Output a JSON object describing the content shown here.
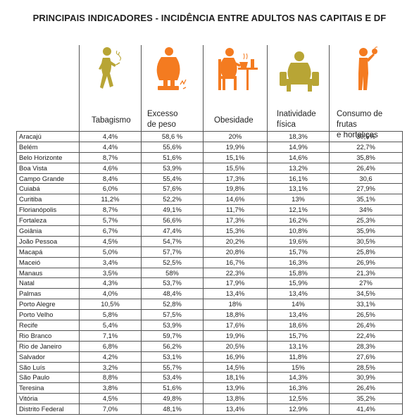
{
  "title": "PRINCIPAIS INDICADORES - INCIDÊNCIA ENTRE ADULTOS NAS CAPITAIS E DF",
  "colors": {
    "orange": "#f47b20",
    "olive": "#b8a535",
    "border": "#555555"
  },
  "headers": [
    {
      "lines": [
        "Tabagismo"
      ],
      "icon": "smoking-person-icon"
    },
    {
      "lines": [
        "Excesso",
        "de peso"
      ],
      "icon": "overweight-on-scale-icon"
    },
    {
      "lines": [
        "Obesidade"
      ],
      "icon": "obese-person-eating-icon"
    },
    {
      "lines": [
        "Inatividade",
        "física"
      ],
      "icon": "sitting-inactive-person-icon"
    },
    {
      "lines": [
        "Consumo de frutas",
        "e hortaliças"
      ],
      "icon": "person-eating-fruit-icon"
    }
  ],
  "chart_data": {
    "type": "table",
    "title": "PRINCIPAIS INDICADORES - INCIDÊNCIA ENTRE ADULTOS NAS CAPITAIS E DF",
    "columns": [
      "Tabagismo",
      "Excesso de peso",
      "Obesidade",
      "Inatividade física",
      "Consumo de frutas e hortaliças"
    ],
    "rows": [
      {
        "city": "Aracajú",
        "values": [
          "4,4%",
          "58,6 %",
          "20%",
          "18,3%",
          "30,6%"
        ]
      },
      {
        "city": "Belém",
        "values": [
          "4,4%",
          "55,6%",
          "19,9%",
          "14,9%",
          "22,7%"
        ]
      },
      {
        "city": "Belo Horizonte",
        "values": [
          "8,7%",
          "51,6%",
          "15,1%",
          "14,6%",
          "35,8%"
        ]
      },
      {
        "city": "Boa Vista",
        "values": [
          "4,6%",
          "53,9%",
          "15,5%",
          "13,2%",
          "26,4%"
        ]
      },
      {
        "city": "Campo Grande",
        "values": [
          "8,4%",
          "55,4%",
          "17,3%",
          "16,1%",
          "30,6"
        ]
      },
      {
        "city": "Cuiabá",
        "values": [
          "6,0%",
          "57,6%",
          "19,8%",
          "13,1%",
          "27,9%"
        ]
      },
      {
        "city": "Curitiba",
        "values": [
          "11,2%",
          "52,2%",
          "14,6%",
          "13%",
          "35,1%"
        ]
      },
      {
        "city": "Florianópolis",
        "values": [
          "8,7%",
          "49,1%",
          "11,7%",
          "12,1%",
          "34%"
        ]
      },
      {
        "city": "Fortaleza",
        "values": [
          "5,7%",
          "56,6%",
          "17,3%",
          "16,2%",
          "25,3%"
        ]
      },
      {
        "city": "Goiânia",
        "values": [
          "6,7%",
          "47,4%",
          "15,3%",
          "10,8%",
          "35,9%"
        ]
      },
      {
        "city": "João Pessoa",
        "values": [
          "4,5%",
          "54,7%",
          "20,2%",
          "19,6%",
          "30,5%"
        ]
      },
      {
        "city": "Macapá",
        "values": [
          "5,0%",
          "57,7%",
          "20,8%",
          "15,7%",
          "25,8%"
        ]
      },
      {
        "city": "Maceió",
        "values": [
          "3,4%",
          "52,5%",
          "16,7%",
          "16,3%",
          "26,9%"
        ]
      },
      {
        "city": "Manaus",
        "values": [
          "3,5%",
          "58%",
          "22,3%",
          "15,8%",
          "21,3%"
        ]
      },
      {
        "city": "Natal",
        "values": [
          "4,3%",
          "53,7%",
          "17,9%",
          "15,9%",
          "27%"
        ]
      },
      {
        "city": "Palmas",
        "values": [
          "4,0%",
          "48,4%",
          "13,4%",
          "13,4%",
          "34,5%"
        ]
      },
      {
        "city": "Porto Alegre",
        "values": [
          "10,5%",
          "52,8%",
          "18%",
          "14%",
          "33,1%"
        ]
      },
      {
        "city": "Porto Velho",
        "values": [
          "5,8%",
          "57,5%",
          "18,8%",
          "13,4%",
          "26,5%"
        ]
      },
      {
        "city": "Recife",
        "values": [
          "5,4%",
          "53,9%",
          "17,6%",
          "18,6%",
          "26,4%"
        ]
      },
      {
        "city": "Rio Branco",
        "values": [
          "7,1%",
          "59,7%",
          "19,9%",
          "15,7%",
          "22,4%"
        ]
      },
      {
        "city": "Rio de Janeiro",
        "values": [
          "6,8%",
          "56,2%",
          "20,5%",
          "13,1%",
          "28,3%"
        ]
      },
      {
        "city": "Salvador",
        "values": [
          "4,2%",
          "53,1%",
          "16,9%",
          "11,8%",
          "27,6%"
        ]
      },
      {
        "city": "São Luís",
        "values": [
          "3,2%",
          "55,7%",
          "14,5%",
          "15%",
          "28,5%"
        ]
      },
      {
        "city": "São Paulo",
        "values": [
          "8,8%",
          "53,4%",
          "18,1%",
          "14,3%",
          "30,9%"
        ]
      },
      {
        "city": "Teresina",
        "values": [
          "3,8%",
          "51,6%",
          "13,9%",
          "16,3%",
          "26,4%"
        ]
      },
      {
        "city": "Vitória",
        "values": [
          "4,5%",
          "49,8%",
          "13,8%",
          "12,5%",
          "35,2%"
        ]
      },
      {
        "city": "Distrito Federal",
        "values": [
          "7,0%",
          "48,1%",
          "13,4%",
          "12,9%",
          "41,4%"
        ]
      }
    ]
  }
}
